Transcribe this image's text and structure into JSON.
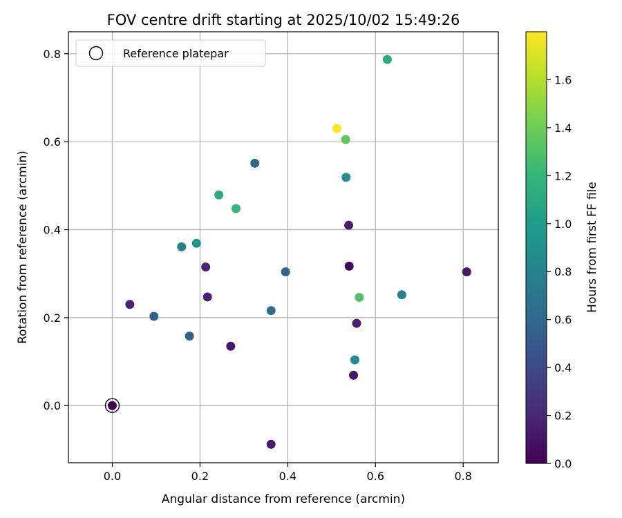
{
  "chart_data": {
    "type": "scatter",
    "title": "FOV centre drift starting at 2025/10/02 15:49:26",
    "xlabel": "Angular distance from reference (arcmin)",
    "ylabel": "Rotation from reference (arcmin)",
    "xlim": [
      -0.1,
      0.88
    ],
    "ylim": [
      -0.13,
      0.85
    ],
    "xticks": [
      0.0,
      0.2,
      0.4,
      0.6,
      0.8
    ],
    "xtick_labels": [
      "0.0",
      "0.2",
      "0.4",
      "0.6",
      "0.8"
    ],
    "yticks": [
      0.0,
      0.2,
      0.4,
      0.6,
      0.8
    ],
    "ytick_labels": [
      "0.0",
      "0.2",
      "0.4",
      "0.6",
      "0.8"
    ],
    "grid": true,
    "legend": {
      "position": "top-left",
      "entries": [
        "Reference platepar"
      ]
    },
    "reference_point": {
      "x": 0.0,
      "y": 0.0,
      "label": "Reference platepar"
    },
    "colorbar": {
      "label": "Hours from first FF file",
      "colormap": "viridis",
      "range": [
        0.0,
        1.8
      ],
      "ticks": [
        0.0,
        0.2,
        0.4,
        0.6,
        0.8,
        1.0,
        1.2,
        1.4,
        1.6
      ],
      "tick_labels": [
        "0.0",
        "0.2",
        "0.4",
        "0.6",
        "0.8",
        "1.0",
        "1.2",
        "1.4",
        "1.6"
      ]
    },
    "points": [
      {
        "x": 0.0,
        "y": 0.0,
        "c": 0.0
      },
      {
        "x": 0.04,
        "y": 0.23,
        "c": 0.17
      },
      {
        "x": 0.095,
        "y": 0.203,
        "c": 0.55
      },
      {
        "x": 0.158,
        "y": 0.361,
        "c": 0.8
      },
      {
        "x": 0.176,
        "y": 0.158,
        "c": 0.58
      },
      {
        "x": 0.192,
        "y": 0.369,
        "c": 0.95
      },
      {
        "x": 0.213,
        "y": 0.315,
        "c": 0.18
      },
      {
        "x": 0.217,
        "y": 0.247,
        "c": 0.17
      },
      {
        "x": 0.243,
        "y": 0.479,
        "c": 1.1
      },
      {
        "x": 0.27,
        "y": 0.135,
        "c": 0.12
      },
      {
        "x": 0.282,
        "y": 0.448,
        "c": 1.2
      },
      {
        "x": 0.325,
        "y": 0.551,
        "c": 0.6
      },
      {
        "x": 0.362,
        "y": -0.088,
        "c": 0.14
      },
      {
        "x": 0.362,
        "y": 0.216,
        "c": 0.62
      },
      {
        "x": 0.395,
        "y": 0.304,
        "c": 0.55
      },
      {
        "x": 0.512,
        "y": 0.63,
        "c": 1.8
      },
      {
        "x": 0.532,
        "y": 0.605,
        "c": 1.35
      },
      {
        "x": 0.533,
        "y": 0.519,
        "c": 0.9
      },
      {
        "x": 0.539,
        "y": 0.41,
        "c": 0.15
      },
      {
        "x": 0.54,
        "y": 0.317,
        "c": 0.02
      },
      {
        "x": 0.55,
        "y": 0.069,
        "c": 0.12
      },
      {
        "x": 0.553,
        "y": 0.104,
        "c": 0.88
      },
      {
        "x": 0.557,
        "y": 0.187,
        "c": 0.15
      },
      {
        "x": 0.563,
        "y": 0.246,
        "c": 1.3
      },
      {
        "x": 0.627,
        "y": 0.787,
        "c": 1.12
      },
      {
        "x": 0.66,
        "y": 0.252,
        "c": 0.78
      },
      {
        "x": 0.808,
        "y": 0.304,
        "c": 0.12
      }
    ]
  }
}
